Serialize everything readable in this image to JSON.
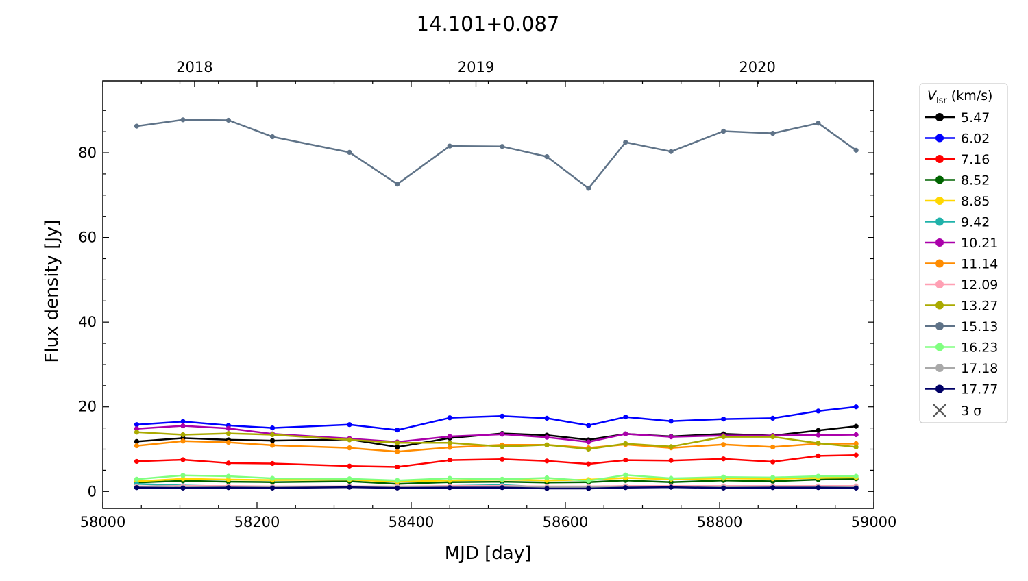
{
  "chart_data": {
    "type": "line",
    "title": "14.101+0.087",
    "xlabel": "MJD [day]",
    "ylabel": "Flux density [Jy]",
    "xlim": [
      58000,
      59000
    ],
    "ylim": [
      -4,
      97
    ],
    "x_ticks": [
      58000,
      58200,
      58400,
      58600,
      58800,
      59000
    ],
    "y_ticks": [
      0,
      20,
      40,
      60,
      80
    ],
    "top_axis": {
      "ticks": [
        {
          "label": "2018",
          "mjd": 58119
        },
        {
          "label": "2019",
          "mjd": 58484
        },
        {
          "label": "2020",
          "mjd": 58849
        }
      ]
    },
    "grid": false,
    "legend": {
      "title_main": "V",
      "title_sub": "lsr",
      "title_unit": " (km/s)",
      "placement": "outside-right",
      "sigma_label": "3 σ"
    },
    "x": [
      58044,
      58104,
      58163,
      58220,
      58320,
      58382,
      58450,
      58518,
      58576,
      58630,
      58678,
      58737,
      58805,
      58869,
      58928,
      58977
    ],
    "series": [
      {
        "name": "5.47",
        "color": "#000000",
        "values": [
          11.8,
          12.6,
          12.2,
          12.0,
          12.3,
          10.5,
          12.6,
          13.7,
          13.3,
          12.2,
          13.6,
          13.0,
          13.6,
          13.2,
          14.4,
          15.4
        ]
      },
      {
        "name": "6.02",
        "color": "#0000ff",
        "values": [
          15.8,
          16.5,
          15.6,
          15.0,
          15.8,
          14.5,
          17.4,
          17.8,
          17.3,
          15.6,
          17.6,
          16.6,
          17.1,
          17.3,
          19.0,
          20.0
        ]
      },
      {
        "name": "7.16",
        "color": "#ff0000",
        "values": [
          7.1,
          7.5,
          6.7,
          6.6,
          6.0,
          5.8,
          7.4,
          7.6,
          7.2,
          6.5,
          7.4,
          7.3,
          7.7,
          7.0,
          8.4,
          8.6
        ]
      },
      {
        "name": "8.52",
        "color": "#006400",
        "values": [
          2.1,
          2.5,
          2.3,
          2.2,
          2.4,
          1.8,
          2.2,
          2.3,
          2.1,
          2.2,
          2.6,
          2.2,
          2.6,
          2.4,
          2.8,
          3.0
        ]
      },
      {
        "name": "8.85",
        "color": "#ffd700",
        "values": [
          2.4,
          3.0,
          2.8,
          2.7,
          2.8,
          2.3,
          2.6,
          2.8,
          2.6,
          2.8,
          3.2,
          2.9,
          3.1,
          3.0,
          3.2,
          3.3
        ]
      },
      {
        "name": "9.42",
        "color": "#20b2aa",
        "values": [
          1.8,
          1.4,
          1.2,
          1.1,
          1.2,
          1.1,
          1.3,
          1.5,
          1.0,
          1.0,
          1.3,
          1.2,
          1.2,
          1.1,
          1.2,
          1.1
        ]
      },
      {
        "name": "10.21",
        "color": "#aa00aa",
        "values": [
          14.8,
          15.5,
          14.9,
          13.6,
          12.5,
          11.7,
          13.0,
          13.5,
          12.8,
          11.7,
          13.6,
          12.9,
          13.2,
          13.2,
          13.3,
          13.4
        ]
      },
      {
        "name": "11.14",
        "color": "#ff8c00",
        "values": [
          10.8,
          11.9,
          11.6,
          10.9,
          10.3,
          9.4,
          10.4,
          11.0,
          11.0,
          10.3,
          11.1,
          10.3,
          11.1,
          10.5,
          11.3,
          11.3
        ]
      },
      {
        "name": "12.09",
        "color": "#ffa0b4",
        "values": [
          1.2,
          1.3,
          1.3,
          1.2,
          1.2,
          1.2,
          1.3,
          1.3,
          1.2,
          1.2,
          1.3,
          1.3,
          1.3,
          1.3,
          1.3,
          1.3
        ]
      },
      {
        "name": "13.27",
        "color": "#aaaa00",
        "values": [
          14.0,
          13.4,
          13.7,
          13.4,
          12.2,
          11.5,
          11.5,
          10.6,
          11.0,
          10.0,
          11.3,
          10.6,
          12.9,
          12.9,
          11.4,
          10.5
        ]
      },
      {
        "name": "15.13",
        "color": "#5f7388",
        "values": [
          86.3,
          87.8,
          87.7,
          83.8,
          80.1,
          72.6,
          81.6,
          81.5,
          79.1,
          71.6,
          82.5,
          80.3,
          85.1,
          84.6,
          87.0,
          80.6
        ]
      },
      {
        "name": "16.23",
        "color": "#80ff80",
        "values": [
          2.9,
          3.8,
          3.6,
          3.1,
          3.0,
          2.6,
          3.1,
          2.9,
          3.2,
          2.5,
          3.9,
          3.1,
          3.4,
          3.3,
          3.6,
          3.6
        ]
      },
      {
        "name": "17.18",
        "color": "#a9a9a9",
        "values": [
          1.0,
          1.0,
          1.0,
          1.0,
          1.0,
          1.0,
          1.0,
          1.0,
          1.0,
          1.0,
          1.0,
          1.0,
          1.0,
          1.0,
          1.0,
          1.0
        ]
      },
      {
        "name": "17.77",
        "color": "#000066",
        "values": [
          0.9,
          0.8,
          0.9,
          0.8,
          1.0,
          0.8,
          0.9,
          0.9,
          0.7,
          0.7,
          0.9,
          1.0,
          0.8,
          0.9,
          0.9,
          0.8
        ]
      }
    ]
  }
}
